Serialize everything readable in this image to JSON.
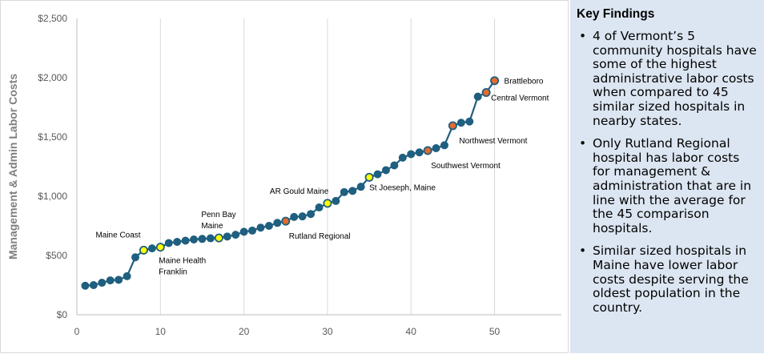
{
  "chart_data": {
    "type": "line",
    "title": "",
    "xlabel": "",
    "ylabel": "Management & Admin Labor Costs",
    "xlim": [
      0,
      58
    ],
    "ylim": [
      0,
      2500
    ],
    "x_ticks": [
      "0",
      "10",
      "20",
      "30",
      "40",
      "50"
    ],
    "y_ticks": [
      "$0",
      "$500",
      "$1,000",
      "$1,500",
      "$2,000",
      "$2,500"
    ],
    "grid": "vertical gridlines",
    "series": [
      {
        "values": [
          {
            "x": 1,
            "y": 245
          },
          {
            "x": 2,
            "y": 250
          },
          {
            "x": 3,
            "y": 270
          },
          {
            "x": 4,
            "y": 290
          },
          {
            "x": 5,
            "y": 295
          },
          {
            "x": 6,
            "y": 325
          },
          {
            "x": 7,
            "y": 485
          },
          {
            "x": 8,
            "y": 545
          },
          {
            "x": 9,
            "y": 560
          },
          {
            "x": 10,
            "y": 570
          },
          {
            "x": 11,
            "y": 605
          },
          {
            "x": 12,
            "y": 615
          },
          {
            "x": 13,
            "y": 625
          },
          {
            "x": 14,
            "y": 635
          },
          {
            "x": 15,
            "y": 640
          },
          {
            "x": 16,
            "y": 645
          },
          {
            "x": 17,
            "y": 648
          },
          {
            "x": 18,
            "y": 660
          },
          {
            "x": 19,
            "y": 675
          },
          {
            "x": 20,
            "y": 700
          },
          {
            "x": 21,
            "y": 710
          },
          {
            "x": 22,
            "y": 735
          },
          {
            "x": 23,
            "y": 750
          },
          {
            "x": 24,
            "y": 775
          },
          {
            "x": 25,
            "y": 790
          },
          {
            "x": 26,
            "y": 825
          },
          {
            "x": 27,
            "y": 830
          },
          {
            "x": 28,
            "y": 850
          },
          {
            "x": 29,
            "y": 905
          },
          {
            "x": 30,
            "y": 940
          },
          {
            "x": 31,
            "y": 960
          },
          {
            "x": 32,
            "y": 1035
          },
          {
            "x": 33,
            "y": 1045
          },
          {
            "x": 34,
            "y": 1080
          },
          {
            "x": 35,
            "y": 1160
          },
          {
            "x": 36,
            "y": 1185
          },
          {
            "x": 37,
            "y": 1220
          },
          {
            "x": 38,
            "y": 1260
          },
          {
            "x": 39,
            "y": 1325
          },
          {
            "x": 40,
            "y": 1355
          },
          {
            "x": 41,
            "y": 1370
          },
          {
            "x": 42,
            "y": 1385
          },
          {
            "x": 43,
            "y": 1405
          },
          {
            "x": 44,
            "y": 1430
          },
          {
            "x": 45,
            "y": 1595
          },
          {
            "x": 46,
            "y": 1620
          },
          {
            "x": 47,
            "y": 1630
          },
          {
            "x": 48,
            "y": 1840
          },
          {
            "x": 49,
            "y": 1875
          },
          {
            "x": 50,
            "y": 1975
          }
        ]
      }
    ],
    "highlight_colors": {
      "default": "#1f5f7f",
      "vermont": "#e36c2d",
      "maine": "#ffff00",
      "line": "#1f5f7f"
    },
    "highlights": [
      {
        "x": 8,
        "group": "maine"
      },
      {
        "x": 10,
        "group": "maine"
      },
      {
        "x": 17,
        "group": "maine"
      },
      {
        "x": 25,
        "group": "vermont"
      },
      {
        "x": 30,
        "group": "maine"
      },
      {
        "x": 35,
        "group": "maine"
      },
      {
        "x": 42,
        "group": "vermont"
      },
      {
        "x": 45,
        "group": "vermont"
      },
      {
        "x": 49,
        "group": "vermont"
      },
      {
        "x": 50,
        "group": "vermont"
      }
    ],
    "annotations": [
      {
        "lines": [
          "Maine Coast"
        ],
        "x": 8,
        "anchor": "upper-left"
      },
      {
        "lines": [
          "Maine Health",
          "Franklin"
        ],
        "x": 10,
        "anchor": "below"
      },
      {
        "lines": [
          "Penn Bay",
          "Maine"
        ],
        "x": 17,
        "anchor": "above"
      },
      {
        "lines": [
          "Rutland Regional"
        ],
        "x": 25,
        "anchor": "below-right"
      },
      {
        "lines": [
          "AR Gould Maine"
        ],
        "x": 30,
        "anchor": "upper-left"
      },
      {
        "lines": [
          "St Joeseph, Maine"
        ],
        "x": 35,
        "anchor": "right"
      },
      {
        "lines": [
          "Southwest Vermont"
        ],
        "x": 42,
        "anchor": "below"
      },
      {
        "lines": [
          "Northwest Vermont"
        ],
        "x": 45,
        "anchor": "below-right"
      },
      {
        "lines": [
          "Central Vermont"
        ],
        "x": 49,
        "anchor": "right"
      },
      {
        "lines": [
          "Brattleboro"
        ],
        "x": 50,
        "anchor": "right"
      }
    ]
  },
  "findings": {
    "title": "Key Findings",
    "bullet": "•",
    "items": [
      "4 of Vermont’s 5 community hospitals have some of the highest administrative labor costs when compared to 45 similar sized hospitals in nearby states.",
      "Only Rutland Regional hospital has labor costs for management & administration that are in line with the average for the 45 comparison hospitals.",
      "Similar sized hospitals in Maine have lower labor costs despite serving the oldest population in the country."
    ]
  }
}
